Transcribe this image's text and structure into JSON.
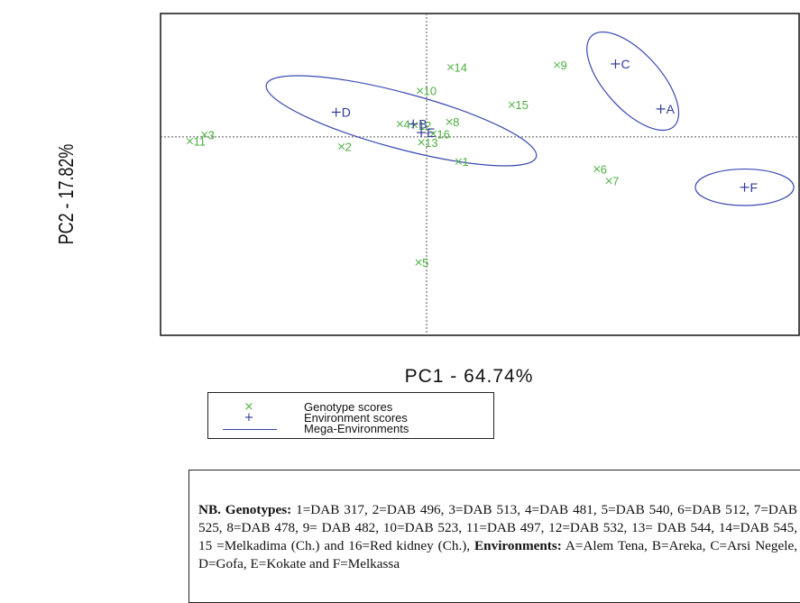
{
  "chart_data": {
    "type": "scatter",
    "xlabel": "PC1 - 64.74%",
    "ylabel": "PC2 - 17.82%",
    "xlim": [
      -2.0,
      2.8
    ],
    "ylim": [
      -1.85,
      1.15
    ],
    "reference_lines": {
      "x": 0,
      "y": 0
    },
    "grid": false,
    "legend_placement": "below plot",
    "colors": {
      "genotype": "#4caf3f",
      "environment": "#2f3a9a",
      "ellipse": "#3a4ab0"
    },
    "series": [
      {
        "name": "Genotype scores",
        "marker": "x",
        "points": [
          {
            "label": "1",
            "x": 0.24,
            "y": -0.23
          },
          {
            "label": "2",
            "x": -0.64,
            "y": -0.09
          },
          {
            "label": "3",
            "x": -1.67,
            "y": 0.02
          },
          {
            "label": "4",
            "x": -0.2,
            "y": 0.12
          },
          {
            "label": "5",
            "x": -0.06,
            "y": -1.17
          },
          {
            "label": "6",
            "x": 1.28,
            "y": -0.3
          },
          {
            "label": "7",
            "x": 1.37,
            "y": -0.41
          },
          {
            "label": "8",
            "x": 0.17,
            "y": 0.14
          },
          {
            "label": "9",
            "x": 0.98,
            "y": 0.67
          },
          {
            "label": "10",
            "x": -0.05,
            "y": 0.43
          },
          {
            "label": "11",
            "x": -1.78,
            "y": -0.04
          },
          {
            "label": "12",
            "x": -0.09,
            "y": 0.11
          },
          {
            "label": "13",
            "x": -0.04,
            "y": -0.05
          },
          {
            "label": "14",
            "x": 0.18,
            "y": 0.65
          },
          {
            "label": "15",
            "x": 0.64,
            "y": 0.3
          },
          {
            "label": "16",
            "x": 0.05,
            "y": 0.03
          }
        ]
      },
      {
        "name": "Environment scores",
        "marker": "+",
        "points": [
          {
            "label": "A",
            "x": 1.76,
            "y": 0.26
          },
          {
            "label": "B",
            "x": -0.1,
            "y": 0.12
          },
          {
            "label": "C",
            "x": 1.42,
            "y": 0.68
          },
          {
            "label": "D",
            "x": -0.68,
            "y": 0.23
          },
          {
            "label": "E",
            "x": -0.04,
            "y": 0.04
          },
          {
            "label": "F",
            "x": 2.39,
            "y": -0.47
          }
        ]
      }
    ],
    "mega_environments": [
      {
        "center": [
          -0.19,
          0.15
        ],
        "rx": 1.05,
        "ry": 0.26,
        "rotation_deg": 15
      },
      {
        "center": [
          1.55,
          0.52
        ],
        "rx": 0.46,
        "ry": 0.26,
        "rotation_deg": 48
      },
      {
        "center": [
          2.39,
          -0.47
        ],
        "rx": 0.37,
        "ry": 0.17,
        "rotation_deg": 0
      }
    ]
  },
  "legend": {
    "genotype_symbol": "×",
    "genotype_label": "Genotype scores",
    "environment_symbol": "+",
    "environment_label": "Environment scores",
    "mega_label": "Mega-Environments"
  },
  "note": {
    "genotypes_head": "NB. Genotypes:",
    "genotypes_text": " 1=DAB 317, 2=DAB 496, 3=DAB 513, 4=DAB 481, 5=DAB 540, 6=DAB 512, 7=DAB 525, 8=DAB 478, 9= DAB 482, 10=DAB 523, 11=DAB 497, 12=DAB 532, 13= DAB 544, 14=DAB 545, 15 =Melkadima (Ch.) and 16=Red kidney (Ch.), ",
    "environments_head": "Environments:",
    "environments_text": " A=Alem Tena, B=Areka, C=Arsi Negele, D=Gofa, E=Kokate and F=Melkassa"
  }
}
